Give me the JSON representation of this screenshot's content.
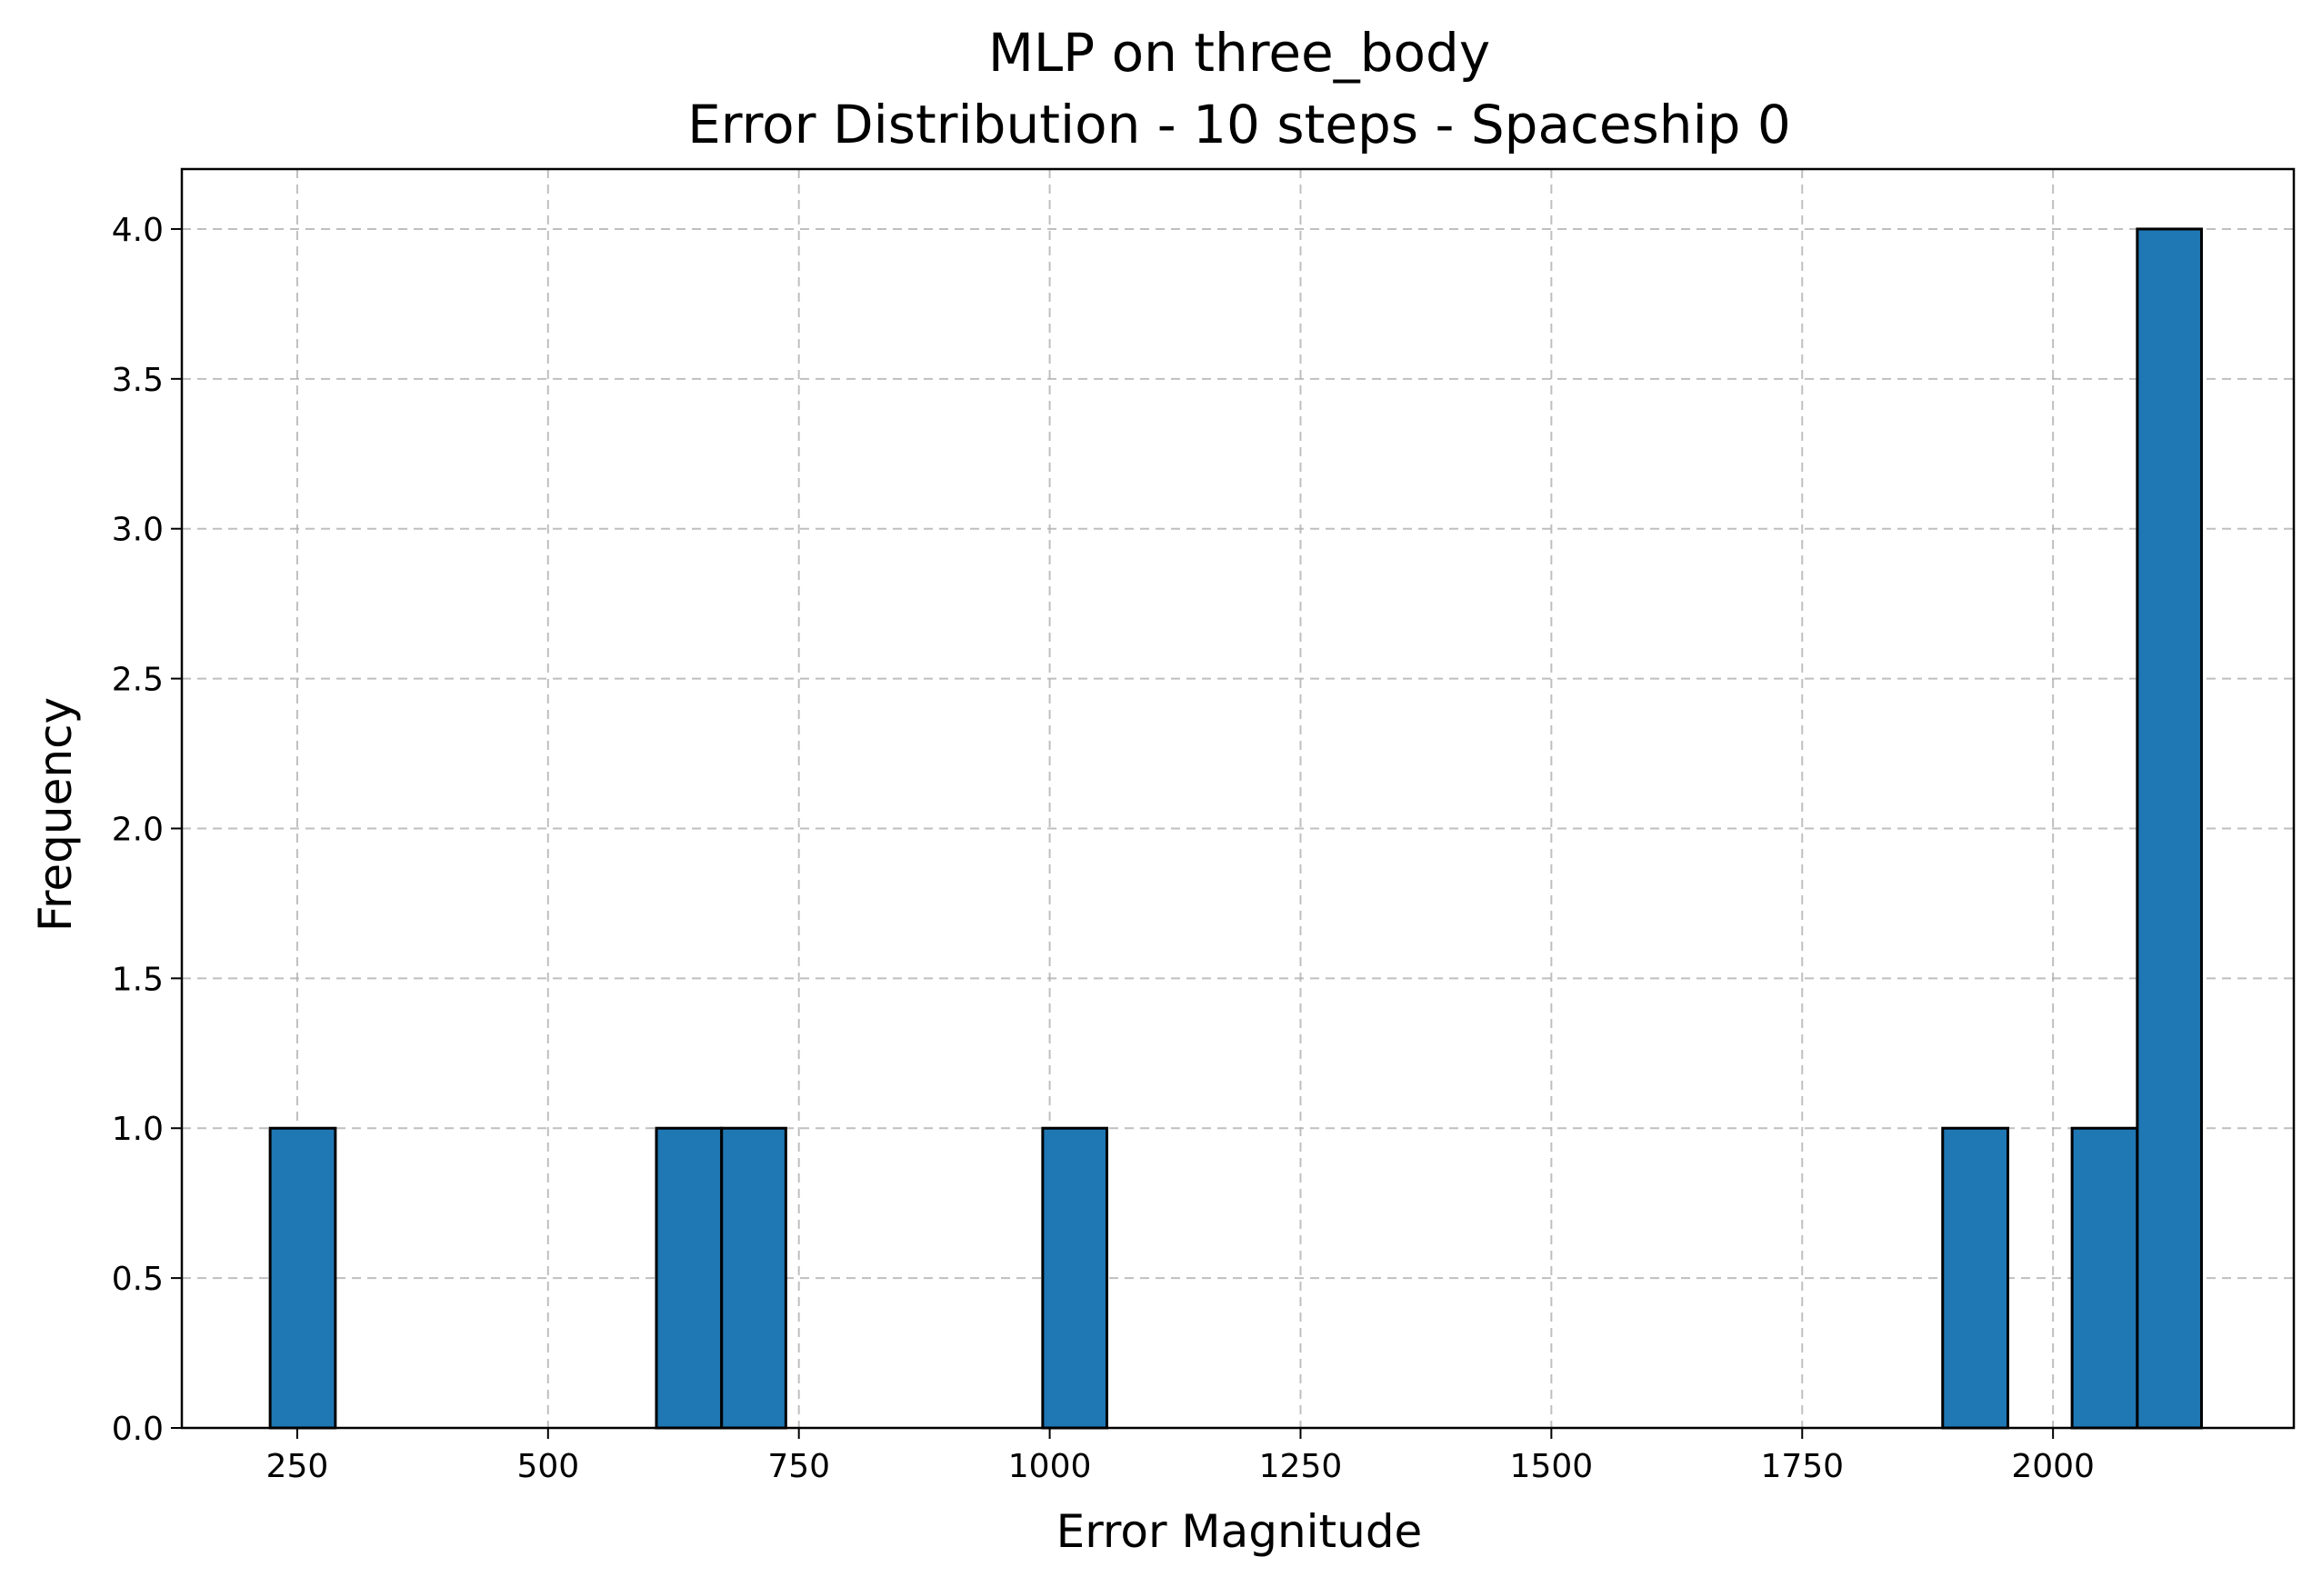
{
  "chart_data": {
    "type": "bar",
    "subtype": "histogram",
    "title": "MLP on three_body",
    "subtitle": "Error Distribution - 10 steps - Spaceship 0",
    "xlabel": "Error Magnitude",
    "ylabel": "Frequency",
    "xlim": [
      135,
      2240
    ],
    "ylim": [
      0,
      4.2
    ],
    "xticks": [
      250,
      500,
      750,
      1000,
      1250,
      1500,
      1750,
      2000
    ],
    "xtick_labels": [
      "250",
      "500",
      "750",
      "1000",
      "1250",
      "1500",
      "1750",
      "2000"
    ],
    "yticks": [
      0.0,
      0.5,
      1.0,
      1.5,
      2.0,
      2.5,
      3.0,
      3.5,
      4.0
    ],
    "ytick_labels": [
      "0.0",
      "0.5",
      "1.0",
      "1.5",
      "2.0",
      "2.5",
      "3.0",
      "3.5",
      "4.0"
    ],
    "grid": true,
    "bar_color": "#1f77b4",
    "edge_color": "#000000",
    "bins": [
      {
        "start": 223,
        "end": 288,
        "value": 1
      },
      {
        "start": 608,
        "end": 673,
        "value": 1
      },
      {
        "start": 673,
        "end": 737,
        "value": 1
      },
      {
        "start": 993,
        "end": 1057,
        "value": 1
      },
      {
        "start": 1890,
        "end": 1955,
        "value": 1
      },
      {
        "start": 2019,
        "end": 2084,
        "value": 1
      },
      {
        "start": 2084,
        "end": 2148,
        "value": 4
      }
    ]
  }
}
